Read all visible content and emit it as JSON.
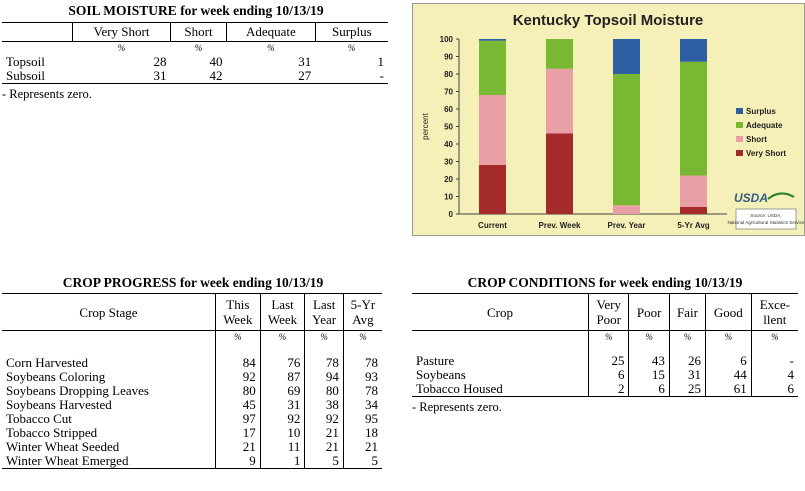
{
  "soil": {
    "title": "SOIL MOISTURE for week ending 10/13/19",
    "columns": [
      "Very Short",
      "Short",
      "Adequate",
      "Surplus"
    ],
    "unit": "%",
    "rows": [
      {
        "label": "Topsoil",
        "values": [
          "28",
          "40",
          "31",
          "1"
        ]
      },
      {
        "label": "Subsoil",
        "values": [
          "31",
          "42",
          "27",
          "-"
        ]
      }
    ],
    "note": "- Represents zero."
  },
  "chart_data": {
    "type": "bar",
    "stacked": true,
    "title": "Kentucky Topsoil Moisture",
    "ylabel": "percent",
    "xlabel": "",
    "categories": [
      "Current",
      "Prev. Week",
      "Prev. Year",
      "5-Yr Avg"
    ],
    "ylim": [
      0,
      100
    ],
    "yticks": [
      0,
      10,
      20,
      30,
      40,
      50,
      60,
      70,
      80,
      90,
      100
    ],
    "grid": false,
    "legend": "right",
    "series": [
      {
        "name": "Very Short",
        "color": "#a52a2a",
        "values": [
          28,
          46,
          0,
          4
        ]
      },
      {
        "name": "Short",
        "color": "#e8a0a6",
        "values": [
          40,
          37,
          5,
          18
        ]
      },
      {
        "name": "Adequate",
        "color": "#79b833",
        "values": [
          31,
          17,
          75,
          65
        ]
      },
      {
        "name": "Surplus",
        "color": "#2e5fa3",
        "values": [
          1,
          0,
          20,
          13
        ]
      }
    ],
    "background": "#f5f0b8",
    "logo_text": "USDA",
    "source_text": "Source: USDA, National Agricultural Statistics Service"
  },
  "progress": {
    "title": "CROP PROGRESS for week ending 10/13/19",
    "stage_header": "Crop Stage",
    "columns": [
      {
        "line1": "This",
        "line2": "Week"
      },
      {
        "line1": "Last",
        "line2": "Week"
      },
      {
        "line1": "Last",
        "line2": "Year"
      },
      {
        "line1": "5-Yr",
        "line2": "Avg"
      }
    ],
    "unit": "%",
    "rows": [
      {
        "label": "Corn Harvested",
        "values": [
          "84",
          "76",
          "78",
          "78"
        ]
      },
      {
        "label": "Soybeans Coloring",
        "values": [
          "92",
          "87",
          "94",
          "93"
        ]
      },
      {
        "label": "Soybeans Dropping Leaves",
        "values": [
          "80",
          "69",
          "80",
          "78"
        ]
      },
      {
        "label": "Soybeans Harvested",
        "values": [
          "45",
          "31",
          "38",
          "34"
        ]
      },
      {
        "label": "Tobacco Cut",
        "values": [
          "97",
          "92",
          "92",
          "95"
        ]
      },
      {
        "label": "Tobacco Stripped",
        "values": [
          "17",
          "10",
          "21",
          "18"
        ]
      },
      {
        "label": "Winter Wheat Seeded",
        "values": [
          "21",
          "11",
          "21",
          "21"
        ]
      },
      {
        "label": "Winter Wheat Emerged",
        "values": [
          "9",
          "1",
          "5",
          "5"
        ]
      }
    ]
  },
  "conditions": {
    "title": "CROP CONDITIONS for week ending 10/13/19",
    "crop_header": "Crop",
    "columns": [
      {
        "line1": "Very",
        "line2": "Poor"
      },
      {
        "line1": "Poor",
        "line2": ""
      },
      {
        "line1": "Fair",
        "line2": ""
      },
      {
        "line1": "Good",
        "line2": ""
      },
      {
        "line1": "Exce-",
        "line2": "llent"
      }
    ],
    "unit": "%",
    "rows": [
      {
        "label": "Pasture",
        "values": [
          "25",
          "43",
          "26",
          "6",
          "-"
        ]
      },
      {
        "label": "Soybeans",
        "values": [
          "6",
          "15",
          "31",
          "44",
          "4"
        ]
      },
      {
        "label": "Tobacco Housed",
        "values": [
          "2",
          "6",
          "25",
          "61",
          "6"
        ]
      }
    ],
    "note": "- Represents zero."
  }
}
